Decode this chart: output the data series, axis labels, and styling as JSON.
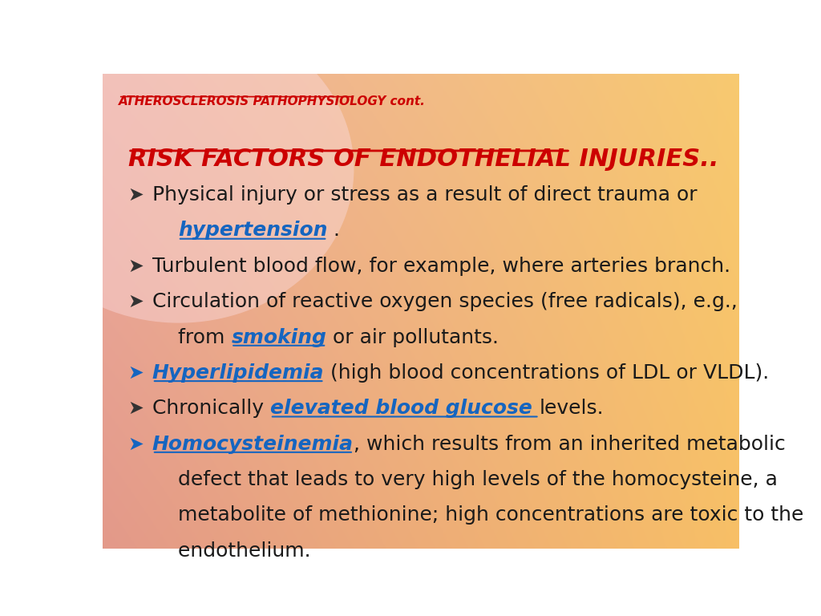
{
  "title": "ATHEROSCLEROSIS PATHOPHYSIOLOGY cont.",
  "title_color": "#CC0000",
  "title_fontsize": 11,
  "section_heading": "RISK FACTORS OF ENDOTHELIAL INJURIES..",
  "section_heading_color": "#CC0000",
  "section_heading_fontsize": 22,
  "body_fontsize": 18,
  "bullets": [
    {
      "lines": [
        [
          {
            "text": "Physical injury or stress as a result of direct trauma or",
            "style": "normal",
            "color": "#1a1a1a"
          }
        ],
        [
          {
            "text": "    ",
            "style": "normal",
            "color": "#1a1a1a"
          },
          {
            "text": "hypertension",
            "style": "bold_italic_underline",
            "color": "#1565C0"
          },
          {
            "text": " .",
            "style": "normal",
            "color": "#1a1a1a"
          }
        ]
      ],
      "bullet_color": "#333333",
      "num_lines": 2
    },
    {
      "lines": [
        [
          {
            "text": "Turbulent blood flow, for example, where arteries branch.",
            "style": "normal",
            "color": "#1a1a1a"
          }
        ]
      ],
      "bullet_color": "#333333",
      "num_lines": 1
    },
    {
      "lines": [
        [
          {
            "text": "Circulation of reactive oxygen species (free radicals), e.g.,",
            "style": "normal",
            "color": "#1a1a1a"
          }
        ],
        [
          {
            "text": "    from ",
            "style": "normal",
            "color": "#1a1a1a"
          },
          {
            "text": "smoking",
            "style": "bold_italic_underline",
            "color": "#1565C0"
          },
          {
            "text": " or air pollutants.",
            "style": "normal",
            "color": "#1a1a1a"
          }
        ]
      ],
      "bullet_color": "#333333",
      "num_lines": 2
    },
    {
      "lines": [
        [
          {
            "text": "Hyperlipidemia",
            "style": "bold_italic_underline",
            "color": "#1565C0"
          },
          {
            "text": " (high blood concentrations of LDL or VLDL).",
            "style": "normal",
            "color": "#1a1a1a"
          }
        ]
      ],
      "bullet_color": "#1565C0",
      "num_lines": 1
    },
    {
      "lines": [
        [
          {
            "text": "Chronically ",
            "style": "normal",
            "color": "#1a1a1a"
          },
          {
            "text": "elevated blood glucose ",
            "style": "bold_italic_underline",
            "color": "#1565C0"
          },
          {
            "text": "levels.",
            "style": "normal",
            "color": "#1a1a1a"
          }
        ]
      ],
      "bullet_color": "#333333",
      "num_lines": 1
    },
    {
      "lines": [
        [
          {
            "text": "Homocysteinemia",
            "style": "bold_italic_underline",
            "color": "#1565C0"
          },
          {
            "text": ", which results from an inherited metabolic",
            "style": "normal",
            "color": "#1a1a1a"
          }
        ],
        [
          {
            "text": "    defect that leads to very high levels of the homocysteine, a",
            "style": "normal",
            "color": "#1a1a1a"
          }
        ],
        [
          {
            "text": "    metabolite of methionine; high concentrations are toxic to the",
            "style": "normal",
            "color": "#1a1a1a"
          }
        ],
        [
          {
            "text": "    endothelium.",
            "style": "normal",
            "color": "#1a1a1a"
          }
        ]
      ],
      "bullet_color": "#1565C0",
      "num_lines": 4
    }
  ]
}
